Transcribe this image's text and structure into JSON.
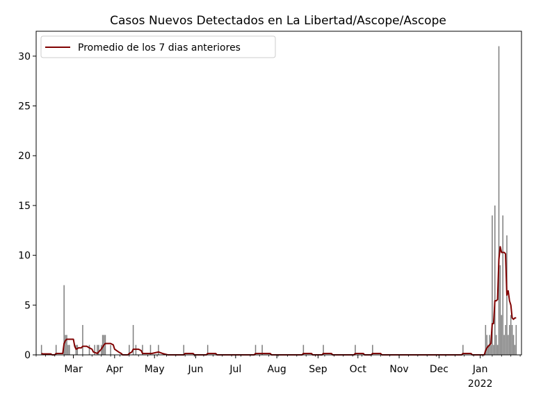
{
  "chart_data": {
    "type": "bar",
    "title": "Casos Nuevos Detectados en La Libertad/Ascope/Ascope",
    "xlabel": "",
    "ylabel": "",
    "ylim": [
      0,
      32.5
    ],
    "yticks": [
      0,
      5,
      10,
      15,
      20,
      25,
      30
    ],
    "x_start": "2021-02-01",
    "x_end": "2022-02-01",
    "xticks": [
      {
        "date": "2021-03-01",
        "label": "Mar"
      },
      {
        "date": "2021-04-01",
        "label": "Apr"
      },
      {
        "date": "2021-05-01",
        "label": "May"
      },
      {
        "date": "2021-06-01",
        "label": "Jun"
      },
      {
        "date": "2021-07-01",
        "label": "Jul"
      },
      {
        "date": "2021-08-01",
        "label": "Aug"
      },
      {
        "date": "2021-09-01",
        "label": "Sep"
      },
      {
        "date": "2021-10-01",
        "label": "Oct"
      },
      {
        "date": "2021-11-01",
        "label": "Nov"
      },
      {
        "date": "2021-12-01",
        "label": "Dec"
      },
      {
        "date": "2022-01-01",
        "label": "Jan",
        "sublabel": "2022"
      }
    ],
    "bar_color": "#7f7f7f",
    "line_color": "#800000",
    "legend": {
      "location": "upper-left",
      "entries": [
        "Promedio de los 7 dias anteriores"
      ]
    },
    "series": [
      {
        "kind": "bar",
        "points": [
          [
            "2021-02-05",
            1
          ],
          [
            "2021-02-16",
            1
          ],
          [
            "2021-02-22",
            7
          ],
          [
            "2021-02-23",
            2
          ],
          [
            "2021-02-24",
            2
          ],
          [
            "2021-02-25",
            1
          ],
          [
            "2021-02-26",
            1
          ],
          [
            "2021-03-03",
            1
          ],
          [
            "2021-03-04",
            1
          ],
          [
            "2021-03-08",
            3
          ],
          [
            "2021-03-13",
            1
          ],
          [
            "2021-03-17",
            1
          ],
          [
            "2021-03-19",
            1
          ],
          [
            "2021-03-20",
            1
          ],
          [
            "2021-03-22",
            1
          ],
          [
            "2021-03-23",
            2
          ],
          [
            "2021-03-24",
            2
          ],
          [
            "2021-03-25",
            2
          ],
          [
            "2021-03-29",
            1
          ],
          [
            "2021-04-12",
            1
          ],
          [
            "2021-04-15",
            3
          ],
          [
            "2021-04-17",
            1
          ],
          [
            "2021-04-22",
            1
          ],
          [
            "2021-04-28",
            1
          ],
          [
            "2021-05-04",
            1
          ],
          [
            "2021-05-23",
            1
          ],
          [
            "2021-06-10",
            1
          ],
          [
            "2021-07-16",
            1
          ],
          [
            "2021-07-21",
            1
          ],
          [
            "2021-08-21",
            1
          ],
          [
            "2021-09-05",
            1
          ],
          [
            "2021-09-29",
            1
          ],
          [
            "2021-10-12",
            1
          ],
          [
            "2021-12-19",
            1
          ],
          [
            "2022-01-05",
            3
          ],
          [
            "2022-01-06",
            2
          ],
          [
            "2022-01-07",
            1
          ],
          [
            "2022-01-08",
            2
          ],
          [
            "2022-01-09",
            1
          ],
          [
            "2022-01-10",
            14
          ],
          [
            "2022-01-11",
            1
          ],
          [
            "2022-01-12",
            15
          ],
          [
            "2022-01-13",
            2
          ],
          [
            "2022-01-14",
            1
          ],
          [
            "2022-01-15",
            31
          ],
          [
            "2022-01-16",
            9
          ],
          [
            "2022-01-17",
            4
          ],
          [
            "2022-01-18",
            14
          ],
          [
            "2022-01-19",
            2
          ],
          [
            "2022-01-20",
            3
          ],
          [
            "2022-01-21",
            12
          ],
          [
            "2022-01-22",
            2
          ],
          [
            "2022-01-23",
            3
          ],
          [
            "2022-01-24",
            4
          ],
          [
            "2022-01-25",
            3
          ],
          [
            "2022-01-26",
            2
          ],
          [
            "2022-01-27",
            1
          ],
          [
            "2022-01-28",
            3
          ]
        ]
      },
      {
        "kind": "line",
        "name": "Promedio de los 7 dias anteriores",
        "points": [
          [
            "2021-02-05",
            0.14
          ],
          [
            "2021-02-06",
            0.1
          ],
          [
            "2021-02-12",
            0.1
          ],
          [
            "2021-02-13",
            0
          ],
          [
            "2021-02-15",
            0
          ],
          [
            "2021-02-16",
            0.14
          ],
          [
            "2021-02-21",
            0.14
          ],
          [
            "2021-02-22",
            1.14
          ],
          [
            "2021-02-23",
            1.43
          ],
          [
            "2021-02-24",
            1.57
          ],
          [
            "2021-03-01",
            1.57
          ],
          [
            "2021-03-02",
            0.86
          ],
          [
            "2021-03-03",
            0.57
          ],
          [
            "2021-03-05",
            0.71
          ],
          [
            "2021-03-07",
            0.71
          ],
          [
            "2021-03-08",
            0.86
          ],
          [
            "2021-03-11",
            0.86
          ],
          [
            "2021-03-13",
            0.71
          ],
          [
            "2021-03-15",
            0.57
          ],
          [
            "2021-03-16",
            0.29
          ],
          [
            "2021-03-19",
            0.14
          ],
          [
            "2021-03-20",
            0.29
          ],
          [
            "2021-03-22",
            0.57
          ],
          [
            "2021-03-24",
            1.0
          ],
          [
            "2021-03-25",
            1.14
          ],
          [
            "2021-03-29",
            1.14
          ],
          [
            "2021-03-31",
            1.0
          ],
          [
            "2021-04-01",
            0.57
          ],
          [
            "2021-04-04",
            0.29
          ],
          [
            "2021-04-06",
            0.14
          ],
          [
            "2021-04-07",
            0
          ],
          [
            "2021-04-11",
            0
          ],
          [
            "2021-04-12",
            0.14
          ],
          [
            "2021-04-14",
            0.29
          ],
          [
            "2021-04-15",
            0.57
          ],
          [
            "2021-04-19",
            0.57
          ],
          [
            "2021-04-21",
            0.43
          ],
          [
            "2021-04-22",
            0.14
          ],
          [
            "2021-04-28",
            0.14
          ],
          [
            "2021-04-29",
            0.14
          ],
          [
            "2021-05-04",
            0.29
          ],
          [
            "2021-05-07",
            0.14
          ],
          [
            "2021-05-11",
            0
          ],
          [
            "2021-05-23",
            0
          ],
          [
            "2021-05-24",
            0.14
          ],
          [
            "2021-05-30",
            0.14
          ],
          [
            "2021-05-31",
            0
          ],
          [
            "2021-06-09",
            0
          ],
          [
            "2021-06-10",
            0.14
          ],
          [
            "2021-06-16",
            0.14
          ],
          [
            "2021-06-17",
            0
          ],
          [
            "2021-07-15",
            0
          ],
          [
            "2021-07-16",
            0.14
          ],
          [
            "2021-07-21",
            0.14
          ],
          [
            "2021-07-27",
            0.14
          ],
          [
            "2021-07-28",
            0
          ],
          [
            "2021-08-20",
            0
          ],
          [
            "2021-08-21",
            0.14
          ],
          [
            "2021-08-27",
            0.14
          ],
          [
            "2021-08-28",
            0
          ],
          [
            "2021-09-04",
            0
          ],
          [
            "2021-09-05",
            0.14
          ],
          [
            "2021-09-11",
            0.14
          ],
          [
            "2021-09-12",
            0
          ],
          [
            "2021-09-28",
            0
          ],
          [
            "2021-09-29",
            0.14
          ],
          [
            "2021-10-05",
            0.14
          ],
          [
            "2021-10-06",
            0
          ],
          [
            "2021-10-11",
            0
          ],
          [
            "2021-10-12",
            0.14
          ],
          [
            "2021-10-18",
            0.14
          ],
          [
            "2021-10-19",
            0
          ],
          [
            "2021-12-18",
            0
          ],
          [
            "2021-12-19",
            0.14
          ],
          [
            "2021-12-25",
            0.14
          ],
          [
            "2021-12-26",
            0
          ],
          [
            "2022-01-04",
            0
          ],
          [
            "2022-01-05",
            0.43
          ],
          [
            "2022-01-06",
            0.71
          ],
          [
            "2022-01-07",
            0.86
          ],
          [
            "2022-01-08",
            1.0
          ],
          [
            "2022-01-09",
            1.14
          ],
          [
            "2022-01-10",
            3.14
          ],
          [
            "2022-01-11",
            3.14
          ],
          [
            "2022-01-12",
            5.43
          ],
          [
            "2022-01-13",
            5.43
          ],
          [
            "2022-01-14",
            5.57
          ],
          [
            "2022-01-15",
            9.57
          ],
          [
            "2022-01-16",
            10.86
          ],
          [
            "2022-01-17",
            10.29
          ],
          [
            "2022-01-18",
            10.29
          ],
          [
            "2022-01-19",
            10.29
          ],
          [
            "2022-01-20",
            10.14
          ],
          [
            "2022-01-21",
            6.0
          ],
          [
            "2022-01-22",
            6.43
          ],
          [
            "2022-01-23",
            5.43
          ],
          [
            "2022-01-24",
            5.0
          ],
          [
            "2022-01-25",
            3.71
          ],
          [
            "2022-01-26",
            3.57
          ],
          [
            "2022-01-27",
            3.71
          ],
          [
            "2022-01-28",
            3.71
          ]
        ]
      }
    ]
  }
}
